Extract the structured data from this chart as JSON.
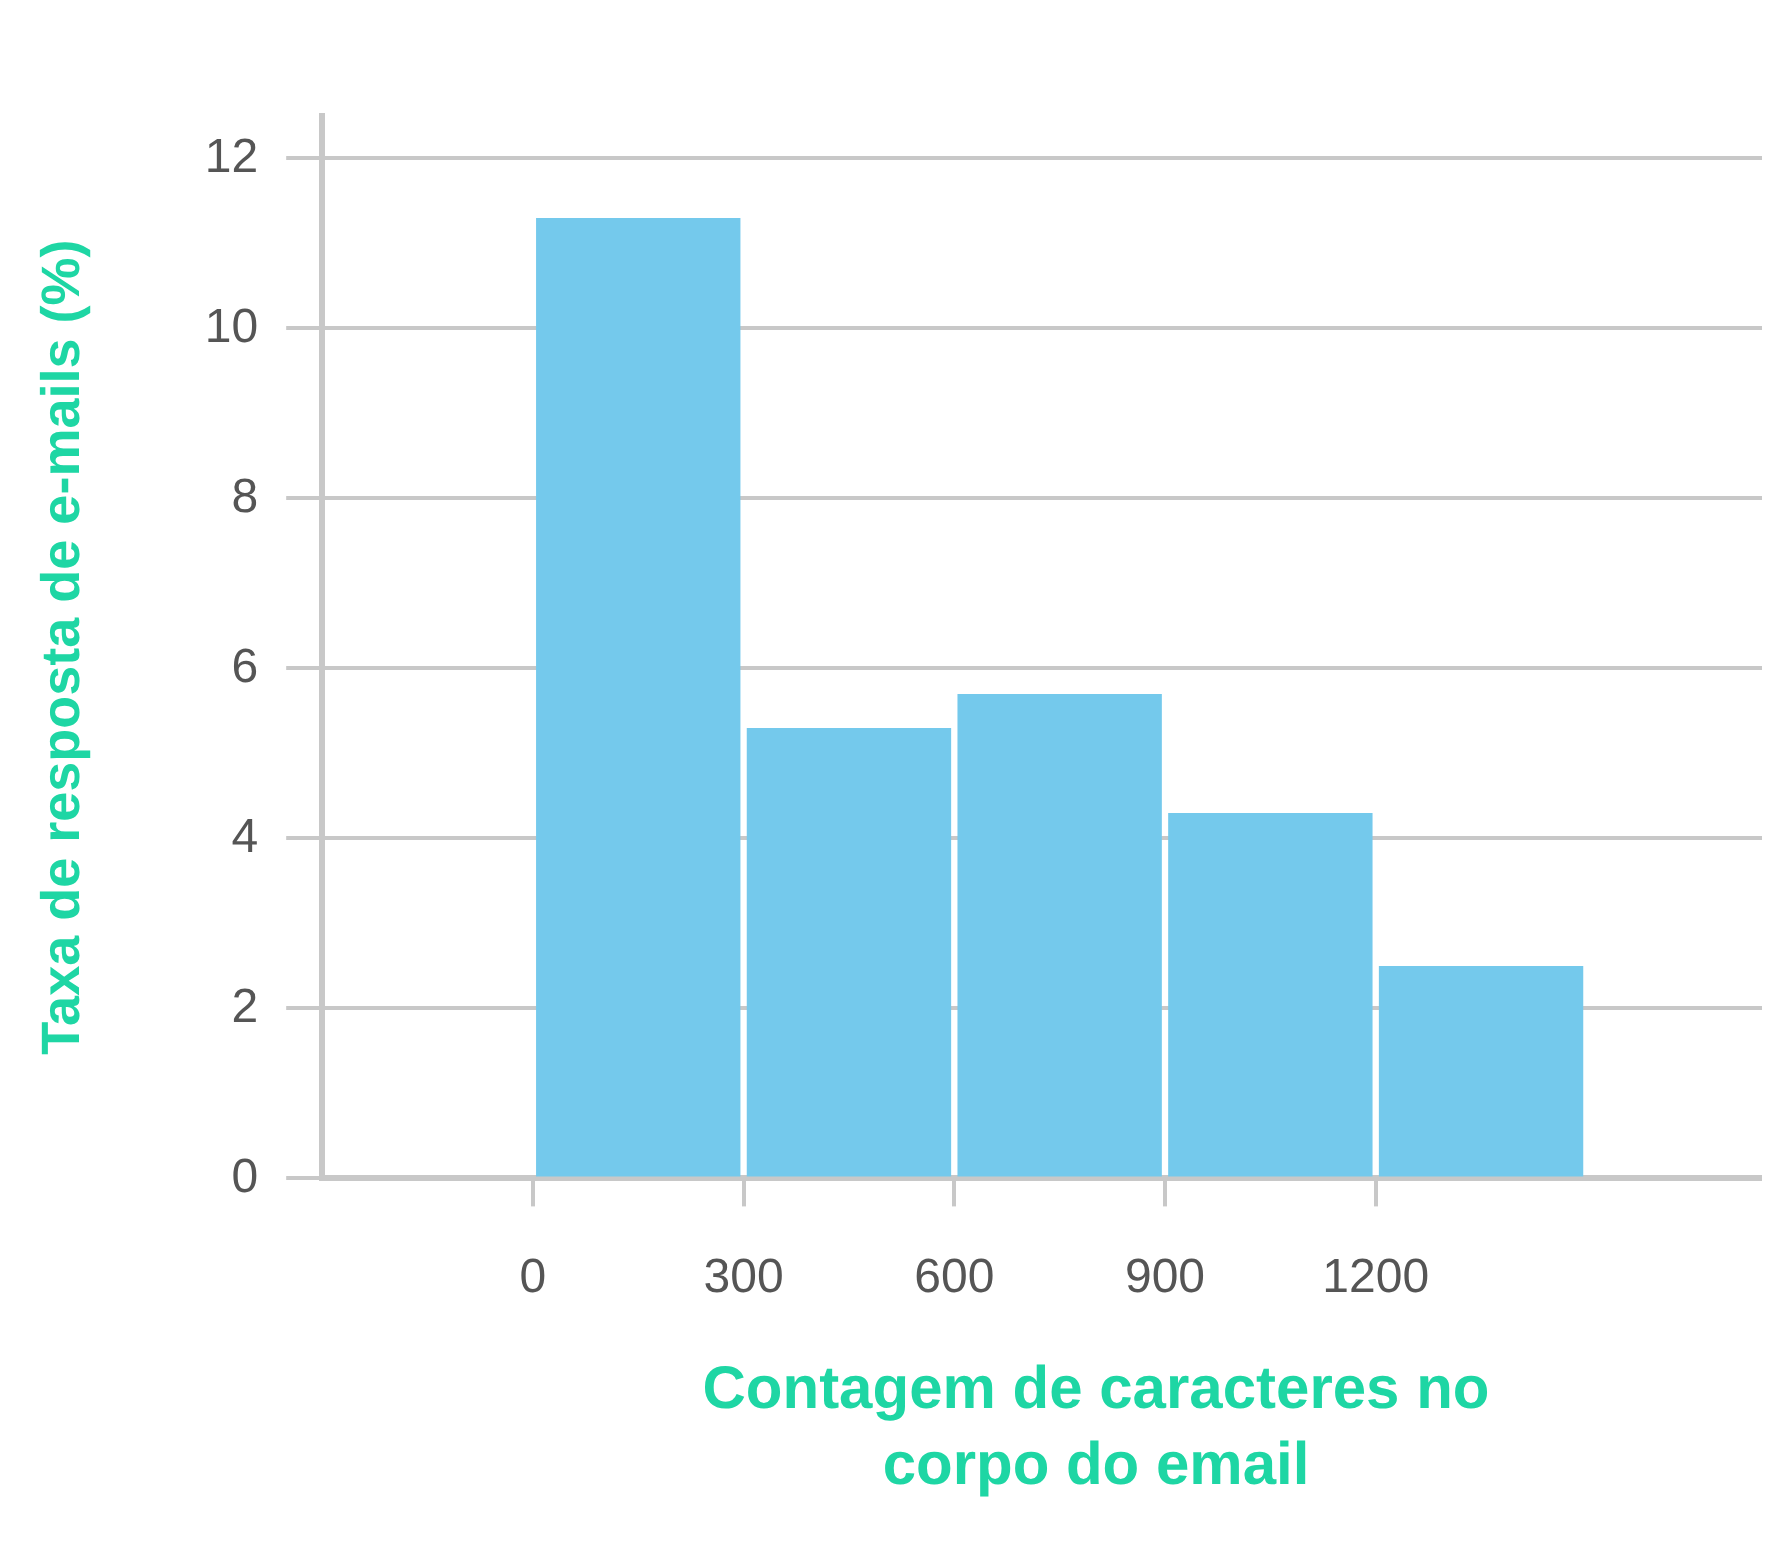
{
  "chart_data": {
    "type": "histogram",
    "xlabel": "Contagem de caracteres no corpo do email",
    "ylabel": "Taxa de resposta de e-mails (%)",
    "bins": [
      0,
      300,
      600,
      900,
      1200,
      1500
    ],
    "values": [
      11.3,
      5.3,
      5.7,
      4.3,
      2.5
    ],
    "color": "#74c9ec",
    "xlim": [
      -300,
      1750
    ],
    "xticks": [
      0,
      300,
      600,
      900,
      1200
    ],
    "ylim": [
      0,
      12.5
    ],
    "yticks": [
      0,
      2,
      4,
      6,
      8,
      10,
      12
    ],
    "grid": "y",
    "legend": false
  }
}
